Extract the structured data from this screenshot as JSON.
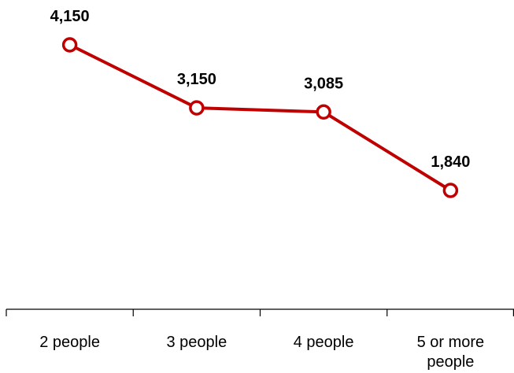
{
  "chart_data": {
    "type": "line",
    "categories": [
      "2 people",
      "3 people",
      "4 people",
      "5 or more people"
    ],
    "category_lines": [
      [
        "2 people"
      ],
      [
        "3 people"
      ],
      [
        "4 people"
      ],
      [
        "5 or more",
        "people"
      ]
    ],
    "series": [
      {
        "values": [
          4150,
          3150,
          3085,
          1840
        ],
        "value_labels": [
          "4,150",
          "3,150",
          "3,085",
          "1,840"
        ],
        "color": "#c00000"
      }
    ],
    "title": "",
    "xlabel": "",
    "ylabel": "",
    "y_axis_visible": false,
    "grid": false,
    "legend": "none",
    "marker": "hollow-circle",
    "axis_color": "#000000"
  }
}
